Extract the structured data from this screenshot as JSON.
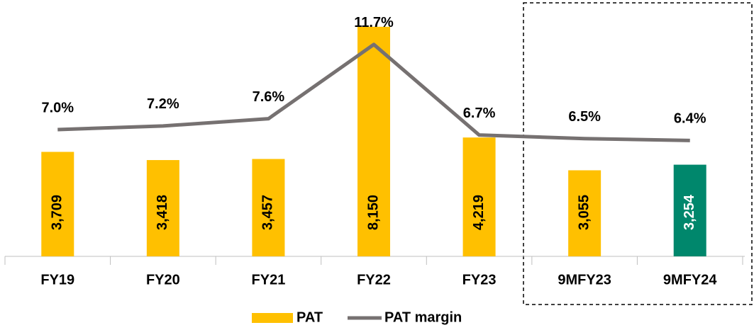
{
  "chart_data": {
    "type": "bar_line",
    "categories": [
      "FY19",
      "FY20",
      "FY21",
      "FY22",
      "FY23",
      "9MFY23",
      "9MFY24"
    ],
    "series": [
      {
        "name": "PAT",
        "type": "bar",
        "color": "#FFC000",
        "colors": [
          "#FFC000",
          "#FFC000",
          "#FFC000",
          "#FFC000",
          "#FFC000",
          "#FFC000",
          "#00876C"
        ],
        "values": [
          3709,
          3418,
          3457,
          8150,
          4219,
          3055,
          3254
        ],
        "value_labels": [
          "3,709",
          "3,418",
          "3,457",
          "8,150",
          "4,219",
          "3,055",
          "3,254"
        ]
      },
      {
        "name": "PAT margin",
        "type": "line",
        "axis": "y2",
        "color": "#767171",
        "values": [
          7.0,
          7.2,
          7.6,
          11.7,
          6.7,
          6.5,
          6.4
        ],
        "value_labels": [
          "7.0%",
          "7.2%",
          "7.6%",
          "11.7%",
          "6.7%",
          "6.5%",
          "6.4%"
        ]
      }
    ],
    "ylim": [
      0,
      9000
    ],
    "y2lim": [
      0,
      14
    ],
    "legend": "bottom"
  }
}
